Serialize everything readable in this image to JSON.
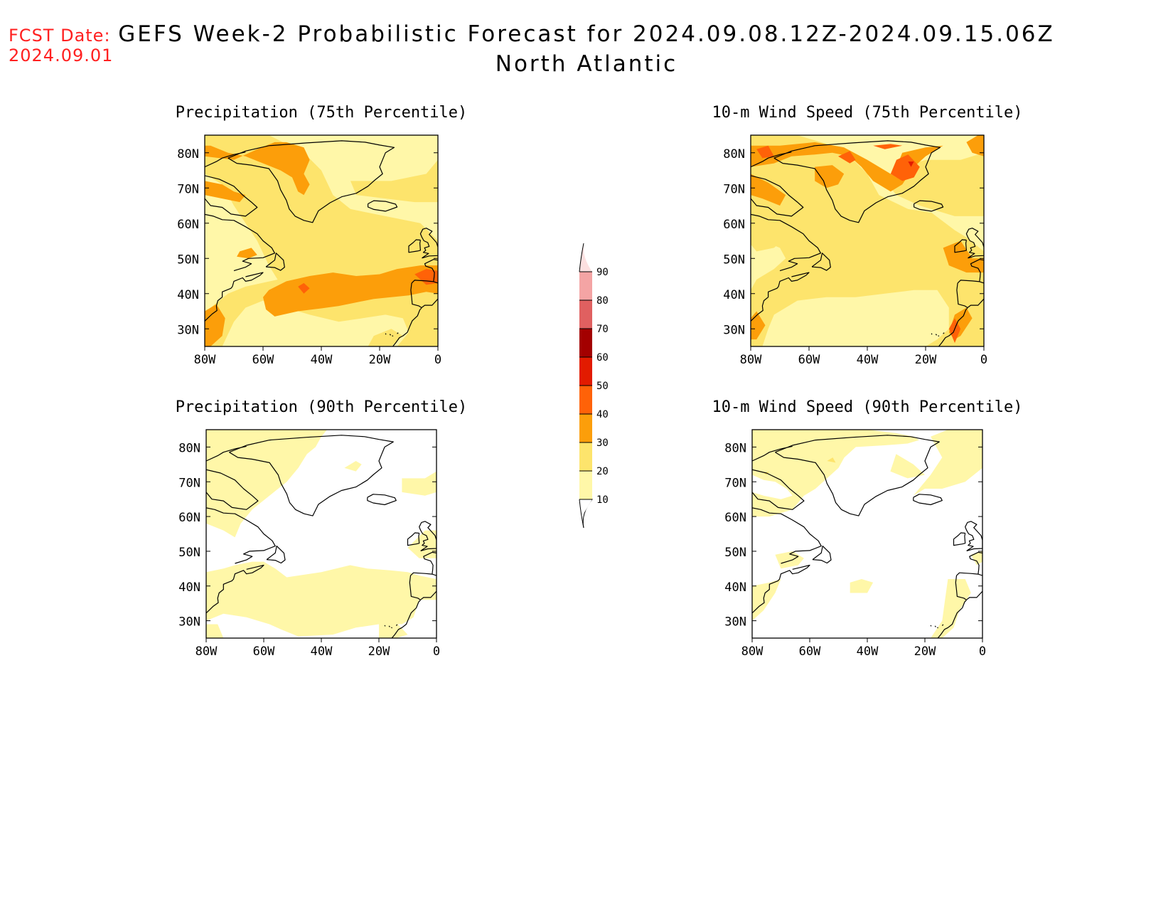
{
  "header": {
    "fcst_label": "FCST Date:",
    "fcst_date": "2024.09.01",
    "title": "GEFS Week-2 Probabilistic Forecast for 2024.09.08.12Z-2024.09.15.06Z",
    "region": "North Atlantic"
  },
  "axes": {
    "lat_ticks": [
      "30N",
      "40N",
      "50N",
      "60N",
      "70N",
      "80N"
    ],
    "lon_ticks": [
      "80W",
      "60W",
      "40W",
      "20W",
      "0"
    ]
  },
  "panels": [
    {
      "id": "precip-75",
      "title": "Precipitation (75th Percentile)"
    },
    {
      "id": "wind-75",
      "title": "10-m Wind Speed (75th Percentile)"
    },
    {
      "id": "precip-90",
      "title": "Precipitation (90th Percentile)"
    },
    {
      "id": "wind-90",
      "title": "10-m Wind Speed (90th Percentile)"
    }
  ],
  "colorbar": {
    "levels": [
      "10",
      "20",
      "30",
      "40",
      "50",
      "60",
      "70",
      "80",
      "90"
    ],
    "colors": [
      "#fff7a8",
      "#fde46c",
      "#fc9e0a",
      "#ff6208",
      "#e21b00",
      "#a30000",
      "#e06060",
      "#f4a4a4",
      "#fce0e0"
    ]
  },
  "land_color": "#ffffff",
  "coast_color": "#000000"
}
